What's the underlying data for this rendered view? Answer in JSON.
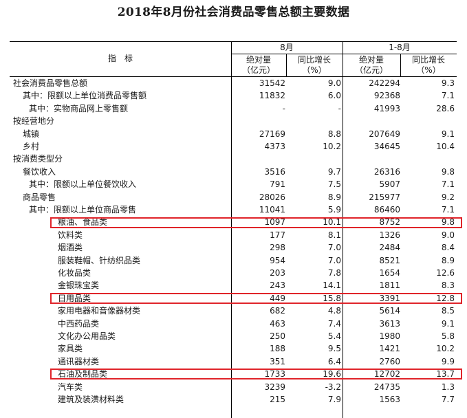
{
  "title": "2018年8月份社会消费品零售总额主要数据",
  "header": {
    "indicator": "指　标",
    "group_aug": "8月",
    "group_ytd": "1-8月",
    "abs_line1": "绝对量",
    "abs_line2": "（亿元）",
    "yoy_line1": "同比增长",
    "yoy_line2": "（%）"
  },
  "highlight_color": "#e0242a",
  "rows": [
    {
      "label": "社会消费品零售总额",
      "v": [
        "31542",
        "9.0",
        "242294",
        "9.3"
      ]
    },
    {
      "label": "其中：限额以上单位消费品零售额",
      "v": [
        "11832",
        "6.0",
        "92368",
        "7.1"
      ]
    },
    {
      "label": "其中：实物商品网上零售额",
      "v": [
        "-",
        "-",
        "41993",
        "28.6"
      ]
    },
    {
      "label": "按经营地分",
      "v": [
        "",
        "",
        "",
        ""
      ]
    },
    {
      "label": "城镇",
      "v": [
        "27169",
        "8.8",
        "207649",
        "9.1"
      ]
    },
    {
      "label": "乡村",
      "v": [
        "4373",
        "10.2",
        "34645",
        "10.4"
      ]
    },
    {
      "label": "按消费类型分",
      "v": [
        "",
        "",
        "",
        ""
      ]
    },
    {
      "label": "餐饮收入",
      "v": [
        "3516",
        "9.7",
        "26316",
        "9.8"
      ]
    },
    {
      "label": "其中：限额以上单位餐饮收入",
      "v": [
        "791",
        "7.5",
        "5907",
        "7.1"
      ]
    },
    {
      "label": "商品零售",
      "v": [
        "28026",
        "8.9",
        "215977",
        "9.2"
      ]
    },
    {
      "label": "其中：限额以上单位商品零售",
      "v": [
        "11041",
        "5.9",
        "86460",
        "7.1"
      ]
    },
    {
      "label": "粮油、食品类",
      "v": [
        "1097",
        "10.1",
        "8752",
        "9.8"
      ],
      "highlight": true
    },
    {
      "label": "饮料类",
      "v": [
        "177",
        "8.1",
        "1326",
        "9.0"
      ]
    },
    {
      "label": "烟酒类",
      "v": [
        "298",
        "7.0",
        "2484",
        "8.4"
      ]
    },
    {
      "label": "服装鞋帽、针纺织品类",
      "v": [
        "954",
        "7.0",
        "8521",
        "8.9"
      ]
    },
    {
      "label": "化妆品类",
      "v": [
        "203",
        "7.8",
        "1654",
        "12.6"
      ]
    },
    {
      "label": "金银珠宝类",
      "v": [
        "243",
        "14.1",
        "1811",
        "8.3"
      ]
    },
    {
      "label": "日用品类",
      "v": [
        "449",
        "15.8",
        "3391",
        "12.8"
      ],
      "highlight": true
    },
    {
      "label": "家用电器和音像器材类",
      "v": [
        "682",
        "4.8",
        "5614",
        "8.5"
      ]
    },
    {
      "label": "中西药品类",
      "v": [
        "463",
        "7.4",
        "3613",
        "9.1"
      ]
    },
    {
      "label": "文化办公用品类",
      "v": [
        "250",
        "5.4",
        "1980",
        "5.8"
      ]
    },
    {
      "label": "家具类",
      "v": [
        "188",
        "9.5",
        "1421",
        "10.2"
      ]
    },
    {
      "label": "通讯器材类",
      "v": [
        "351",
        "6.4",
        "2760",
        "9.9"
      ]
    },
    {
      "label": "石油及制品类",
      "v": [
        "1733",
        "19.6",
        "12702",
        "13.7"
      ],
      "highlight": true
    },
    {
      "label": "汽车类",
      "v": [
        "3239",
        "-3.2",
        "24735",
        "1.3"
      ]
    },
    {
      "label": "建筑及装潢材料类",
      "v": [
        "215",
        "7.9",
        "1563",
        "7.7"
      ]
    }
  ]
}
